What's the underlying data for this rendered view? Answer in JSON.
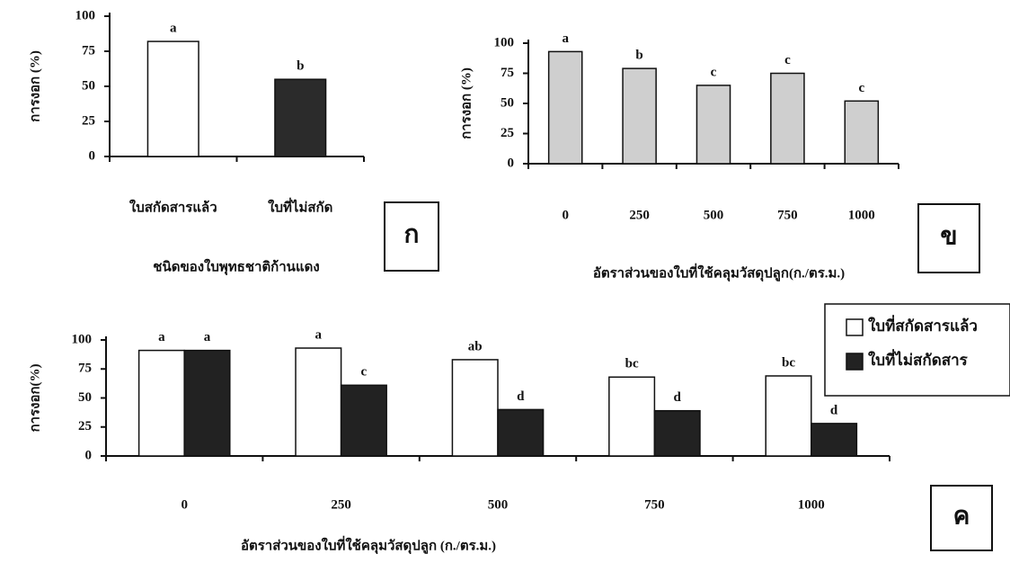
{
  "chart_data": [
    {
      "type": "bar",
      "ylabel": "การงอก (%)",
      "xlabel": "ชนิดของใบพุทธชาติก้านแดง",
      "panel": "ก",
      "categories": [
        "ใบสกัดสารแล้ว",
        "ใบที่ไม่สกัด"
      ],
      "values": [
        82,
        55
      ],
      "letters": [
        "a",
        "b"
      ],
      "colors": [
        "#ffffff",
        "#2b2b2b"
      ],
      "ylim": [
        0,
        100
      ],
      "yticks": [
        0,
        25,
        50,
        75,
        100
      ]
    },
    {
      "type": "bar",
      "ylabel": "การงอก (%)",
      "xlabel": "อัตราส่วนของใบที่ใช้คลุมวัสดุปลูก(ก./ตร.ม.)",
      "panel": "ข",
      "categories": [
        "0",
        "250",
        "500",
        "750",
        "1000"
      ],
      "values": [
        93,
        79,
        65,
        75,
        52
      ],
      "letters": [
        "a",
        "b",
        "c",
        "c",
        "c"
      ],
      "color": "#cfcfcf",
      "ylim": [
        0,
        100
      ],
      "yticks": [
        0,
        25,
        50,
        75,
        100
      ]
    },
    {
      "type": "bar",
      "ylabel": "การงอก(%)",
      "xlabel": "อัตราส่วนของใบที่ใช้คลุมวัสดุปลูก (ก./ตร.ม.)",
      "panel": "ค",
      "categories": [
        "0",
        "250",
        "500",
        "750",
        "1000"
      ],
      "series": [
        {
          "name": "ใบที่สกัดสารแล้ว",
          "color": "#ffffff",
          "values": [
            91,
            93,
            83,
            68,
            69
          ],
          "letters": [
            "a",
            "a",
            "ab",
            "bc",
            "bc"
          ]
        },
        {
          "name": "ใบที่ไม่สกัดสาร",
          "color": "#222222",
          "values": [
            91,
            61,
            40,
            39,
            28
          ],
          "letters": [
            "a",
            "c",
            "d",
            "d",
            "d"
          ]
        }
      ],
      "ylim": [
        0,
        100
      ],
      "yticks": [
        0,
        25,
        50,
        75,
        100
      ]
    }
  ]
}
